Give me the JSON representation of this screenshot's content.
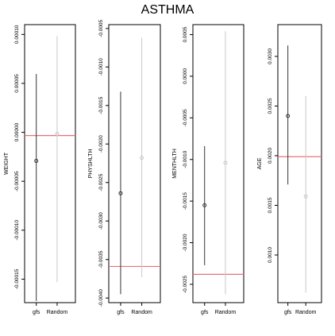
{
  "title": "ASTHMA",
  "chart_data": [
    {
      "type": "errorbar",
      "ylabel": "WEIGHT",
      "categories": [
        "gfs",
        "Random"
      ],
      "ylim": [
        -0.000174,
        0.00011
      ],
      "yticks": [
        0.0001,
        5e-05,
        0.0,
        -5e-05,
        -0.0001,
        -0.00015
      ],
      "ytick_labels": [
        "0.00010",
        "0.00005",
        "0.00000",
        "-0.00005",
        "-0.00010",
        "-0.00015"
      ],
      "series": [
        {
          "category": "gfs",
          "estimate": -2.92e-05,
          "lower": -0.0001723,
          "upper": 5.96e-05,
          "color": "#333333"
        },
        {
          "category": "Random",
          "estimate": -1.6e-06,
          "lower": -0.0001531,
          "upper": 9.82e-05,
          "color": "#c8c8c8"
        }
      ],
      "reference_value": -3.3e-06,
      "reference_color": "#e8707a"
    },
    {
      "type": "errorbar",
      "ylabel": "PHYSHLTH",
      "categories": [
        "gfs",
        "Random"
      ],
      "ylim": [
        -0.00406,
        -0.00045
      ],
      "yticks": [
        -0.0005,
        -0.001,
        -0.0015,
        -0.002,
        -0.0025,
        -0.003,
        -0.0035,
        -0.004
      ],
      "ytick_labels": [
        "-0.0005",
        "-0.0010",
        "-0.0015",
        "-0.0020",
        "-0.0025",
        "-0.0030",
        "-0.0035",
        "-0.0040"
      ],
      "series": [
        {
          "category": "gfs",
          "estimate": -0.00264,
          "lower": -0.00395,
          "upper": -0.00132,
          "color": "#333333"
        },
        {
          "category": "Random",
          "estimate": -0.00218,
          "lower": -0.00373,
          "upper": -0.00062,
          "color": "#c8c8c8"
        }
      ],
      "reference_value": -0.00359,
      "reference_color": "#e8707a"
    },
    {
      "type": "errorbar",
      "ylabel": "MENTHLTH",
      "categories": [
        "gfs",
        "Random"
      ],
      "ylim": [
        -0.00272,
        0.00062
      ],
      "yticks": [
        0.0005,
        0.0,
        -0.0005,
        -0.001,
        -0.0015,
        -0.002,
        -0.0025
      ],
      "ytick_labels": [
        "0.0005",
        "0.0000",
        "-0.0005",
        "-0.0010",
        "-0.0015",
        "-0.0020",
        "-0.0025"
      ],
      "series": [
        {
          "category": "gfs",
          "estimate": -0.00155,
          "lower": -0.00227,
          "upper": -0.00084,
          "color": "#333333"
        },
        {
          "category": "Random",
          "estimate": -0.00104,
          "lower": -0.00262,
          "upper": 0.00054,
          "color": "#c8c8c8"
        }
      ],
      "reference_value": -0.00238,
      "reference_color": "#e8707a"
    },
    {
      "type": "errorbar",
      "ylabel": "AGE",
      "categories": [
        "gfs",
        "Random"
      ],
      "ylim": [
        0.00052,
        0.00332
      ],
      "yticks": [
        0.001,
        0.0015,
        0.002,
        0.0025,
        0.003
      ],
      "ytick_labels": [
        "0.0010",
        "0.0015",
        "0.0020",
        "0.0025",
        "0.0030"
      ],
      "series": [
        {
          "category": "gfs",
          "estimate": 0.0024,
          "lower": 0.00171,
          "upper": 0.00311,
          "color": "#333333"
        },
        {
          "category": "Random",
          "estimate": 0.00159,
          "lower": 0.00062,
          "upper": 0.0026,
          "color": "#c8c8c8"
        }
      ],
      "reference_value": 0.00199,
      "reference_color": "#e8707a"
    }
  ]
}
